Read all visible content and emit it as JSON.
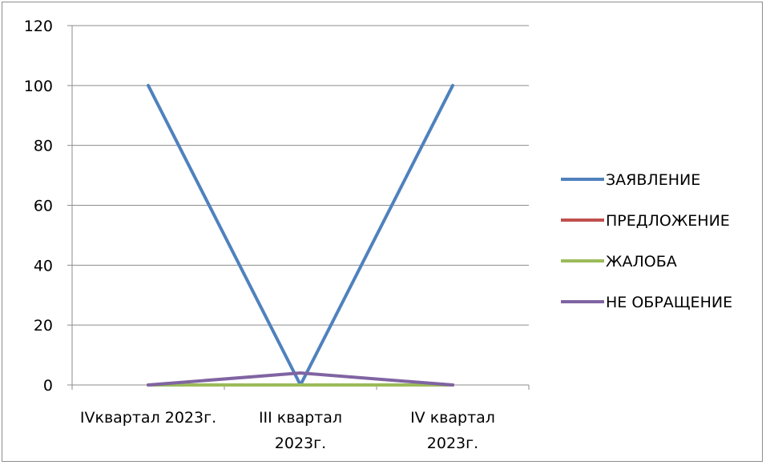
{
  "chart_data": {
    "type": "line",
    "categories": [
      [
        "IVквартал 2023г."
      ],
      [
        "III квартал",
        "2023г."
      ],
      [
        "IV квартал",
        "2023г."
      ]
    ],
    "ylim": [
      0,
      120
    ],
    "yticks": [
      0,
      20,
      40,
      60,
      80,
      100,
      120
    ],
    "grid": true,
    "legend_position": "right",
    "series": [
      {
        "name": "ЗАЯВЛЕНИЕ",
        "values": [
          100,
          0,
          100
        ],
        "color": "#4f81bd"
      },
      {
        "name": "ПРЕДЛОЖЕНИЕ",
        "values": [
          0,
          0,
          0
        ],
        "color": "#c0504d"
      },
      {
        "name": "ЖАЛОБА",
        "values": [
          0,
          0,
          0
        ],
        "color": "#9bbb59"
      },
      {
        "name": "НЕ ОБРАЩЕНИЕ",
        "values": [
          0,
          4,
          0
        ],
        "color": "#8064a2"
      }
    ]
  }
}
